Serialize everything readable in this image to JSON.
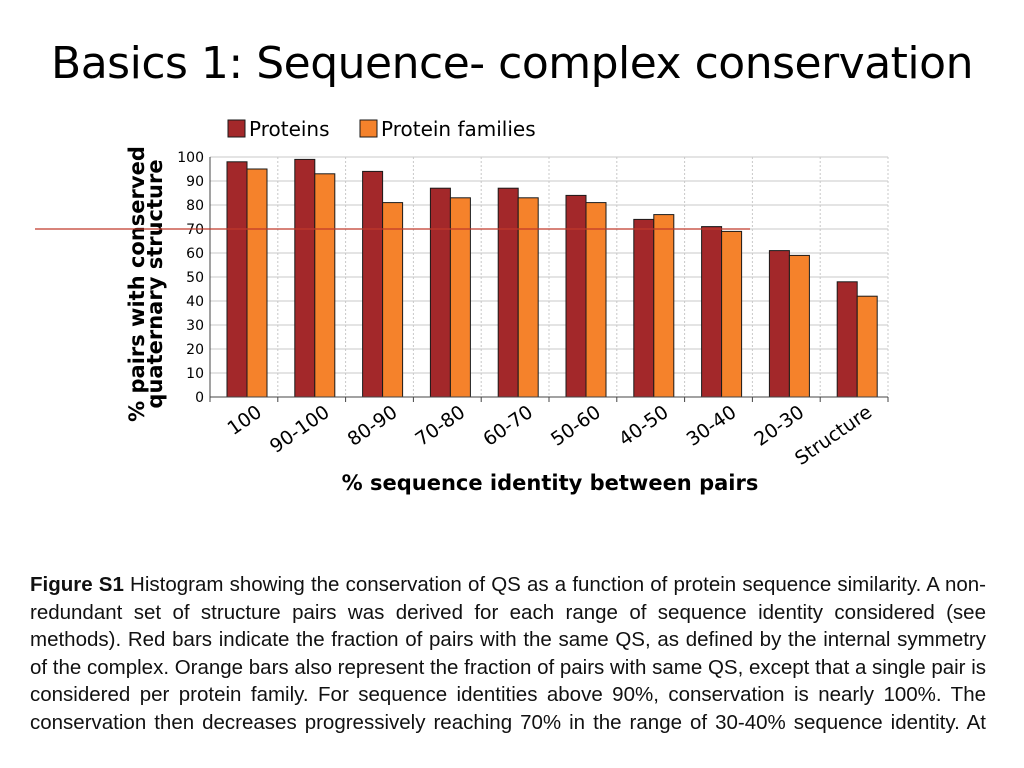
{
  "slide": {
    "title": "Basics 1: Sequence- complex conservation"
  },
  "colors": {
    "proteins": "#a3282a",
    "protein_families": "#f5822b",
    "reference_line": "#c0392b",
    "grid": "#c8c8c8"
  },
  "chart_data": {
    "type": "bar",
    "title": "",
    "xlabel": "% sequence identity between pairs",
    "ylabel_line1": "% pairs with conserved",
    "ylabel_line2": "quaternary structure",
    "ylim": [
      0,
      100
    ],
    "yticks": [
      0,
      10,
      20,
      30,
      40,
      50,
      60,
      70,
      80,
      90,
      100
    ],
    "grid": true,
    "legend_position": "top",
    "reference_line_value": 70,
    "categories": [
      "100",
      "90-100",
      "80-90",
      "70-80",
      "60-70",
      "50-60",
      "40-50",
      "30-40",
      "20-30",
      "Structure"
    ],
    "series": [
      {
        "name": "Proteins",
        "values": [
          98,
          99,
          94,
          87,
          87,
          84,
          74,
          71,
          61,
          48
        ]
      },
      {
        "name": "Protein families",
        "values": [
          95,
          93,
          81,
          83,
          83,
          81,
          76,
          69,
          59,
          42
        ]
      }
    ]
  },
  "caption": {
    "label": "Figure S1",
    "text": "Histogram showing the conservation of QS as a function of protein sequence similarity. A non-redundant set of structure pairs was derived for each range of sequence identity considered (see methods). Red bars indicate the fraction of pairs with the same QS, as defined by the internal symmetry of the complex. Orange bars also represent the fraction of pairs with same QS, except that a single pair is considered per protein family. For sequence identities above 90%, conservation is nearly 100%. The conservation then decreases progressively reaching 70% in the range of 30-40% sequence identity. At"
  }
}
